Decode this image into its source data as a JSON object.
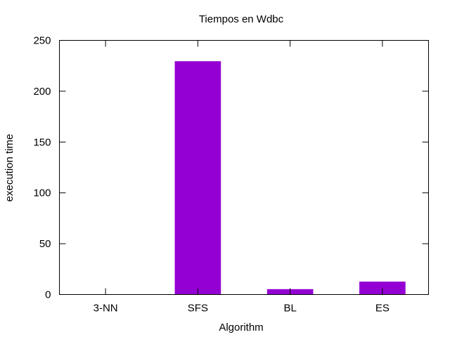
{
  "chart_data": {
    "type": "bar",
    "title": "Tiempos en Wdbc",
    "xlabel": "Algorithm",
    "ylabel": "execution time",
    "categories": [
      "3-NN",
      "SFS",
      "BL",
      "ES"
    ],
    "values": [
      0.3,
      229.5,
      5.3,
      12.7
    ],
    "ylim": [
      0,
      250
    ],
    "yticks": [
      0,
      50,
      100,
      150,
      200,
      250
    ],
    "bar_color": "#9400d3",
    "grid": false,
    "legend": "none"
  }
}
